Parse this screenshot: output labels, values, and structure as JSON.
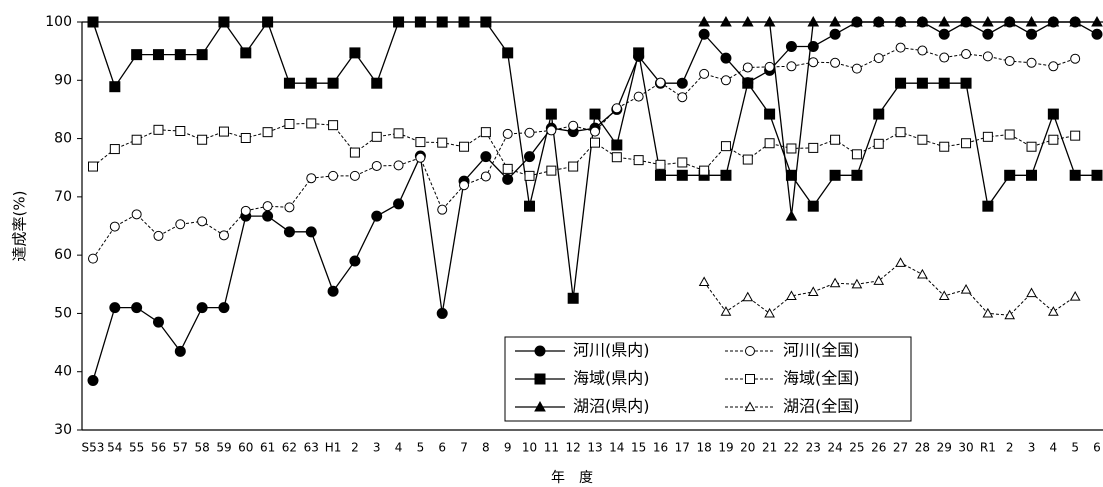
{
  "chart_data": {
    "type": "line",
    "ylabel": "達成率(%)",
    "xlabel": "年　度",
    "categories": [
      "S53",
      "54",
      "55",
      "56",
      "57",
      "58",
      "59",
      "60",
      "61",
      "62",
      "63",
      "H1",
      "2",
      "3",
      "4",
      "5",
      "6",
      "7",
      "8",
      "9",
      "10",
      "11",
      "12",
      "13",
      "14",
      "15",
      "16",
      "17",
      "18",
      "19",
      "20",
      "21",
      "22",
      "23",
      "24",
      "25",
      "26",
      "27",
      "28",
      "29",
      "30",
      "R1",
      "2",
      "3",
      "4",
      "5",
      "6"
    ],
    "ylim": [
      30,
      100
    ],
    "yticks": [
      30,
      40,
      50,
      60,
      70,
      80,
      90,
      100
    ],
    "series": [
      {
        "name": "河川(県内)",
        "color": "#000000",
        "marker": "circle",
        "filled": true,
        "dashed": false,
        "values": [
          38.5,
          51,
          51,
          48.5,
          43.5,
          51,
          51,
          66.7,
          66.7,
          64,
          64,
          53.8,
          59,
          66.7,
          68.8,
          77,
          50,
          72.7,
          76.9,
          73,
          76.9,
          81.8,
          81.2,
          81.8,
          85,
          94.1,
          89.5,
          89.5,
          97.9,
          93.8,
          89.6,
          91.7,
          95.8,
          95.8,
          97.9,
          100,
          100,
          100,
          100,
          97.9,
          100,
          97.9,
          100,
          97.9,
          100,
          100,
          97.9
        ]
      },
      {
        "name": "河川(全国)",
        "color": "#000000",
        "marker": "circle",
        "filled": false,
        "dashed": true,
        "values": [
          59.4,
          64.9,
          67,
          63.3,
          65.3,
          65.8,
          63.4,
          67.6,
          68.4,
          68.2,
          73.2,
          73.6,
          73.6,
          75.3,
          75.4,
          76.7,
          67.8,
          72,
          73.5,
          80.8,
          81,
          81.4,
          82.2,
          81.2,
          85.2,
          87.2,
          89.6,
          87.1,
          91.1,
          90,
          92.2,
          92.3,
          92.4,
          93.1,
          93,
          92,
          93.8,
          95.6,
          95.1,
          93.9,
          94.5,
          94.1,
          93.3,
          93,
          92.4,
          93.7,
          null
        ]
      },
      {
        "name": "海域(県内)",
        "color": "#000000",
        "marker": "square",
        "filled": true,
        "dashed": false,
        "values": [
          100,
          88.9,
          94.4,
          94.4,
          94.4,
          94.4,
          100,
          94.7,
          100,
          89.5,
          89.5,
          89.5,
          94.7,
          89.5,
          100,
          100,
          100,
          100,
          100,
          94.7,
          68.4,
          84.2,
          52.6,
          84.2,
          78.9,
          94.7,
          73.7,
          73.7,
          73.7,
          73.7,
          89.5,
          84.2,
          73.7,
          68.4,
          73.7,
          73.7,
          84.2,
          89.5,
          89.5,
          89.5,
          89.5,
          68.4,
          73.7,
          73.7,
          84.2,
          73.7,
          73.7
        ]
      },
      {
        "name": "海域(全国)",
        "color": "#000000",
        "marker": "square",
        "filled": false,
        "dashed": true,
        "values": [
          75.2,
          78.2,
          79.8,
          81.5,
          81.3,
          79.8,
          81.2,
          80.1,
          81.1,
          82.5,
          82.6,
          82.3,
          77.6,
          80.3,
          80.9,
          79.4,
          79.3,
          78.6,
          81.1,
          74.8,
          73.6,
          74.5,
          75.2,
          79.3,
          76.8,
          76.3,
          75.5,
          75.9,
          74.5,
          78.7,
          76.4,
          79.2,
          78.3,
          78.4,
          79.8,
          77.3,
          79.1,
          81.1,
          79.8,
          78.6,
          79.2,
          80.3,
          80.7,
          78.6,
          79.8,
          80.5,
          null
        ]
      },
      {
        "name": "湖沼(県内)",
        "color": "#000000",
        "marker": "triangle",
        "filled": true,
        "dashed": false,
        "values": [
          null,
          null,
          null,
          null,
          null,
          null,
          null,
          null,
          null,
          null,
          null,
          null,
          null,
          null,
          null,
          null,
          null,
          null,
          null,
          null,
          null,
          null,
          null,
          null,
          null,
          null,
          null,
          null,
          100,
          100,
          100,
          100,
          66.7,
          100,
          100,
          100,
          100,
          100,
          100,
          100,
          100,
          100,
          100,
          100,
          100,
          100,
          100
        ]
      },
      {
        "name": "湖沼(全国)",
        "color": "#000000",
        "marker": "triangle",
        "filled": false,
        "dashed": true,
        "values": [
          null,
          null,
          null,
          null,
          null,
          null,
          null,
          null,
          null,
          null,
          null,
          null,
          null,
          null,
          null,
          null,
          null,
          null,
          null,
          null,
          null,
          null,
          null,
          null,
          null,
          null,
          null,
          null,
          55.4,
          50.3,
          52.8,
          50,
          53,
          53.7,
          55.2,
          55,
          55.6,
          58.7,
          56.7,
          53,
          54.1,
          50,
          49.7,
          53.5,
          50.3,
          52.9,
          null
        ]
      }
    ]
  }
}
